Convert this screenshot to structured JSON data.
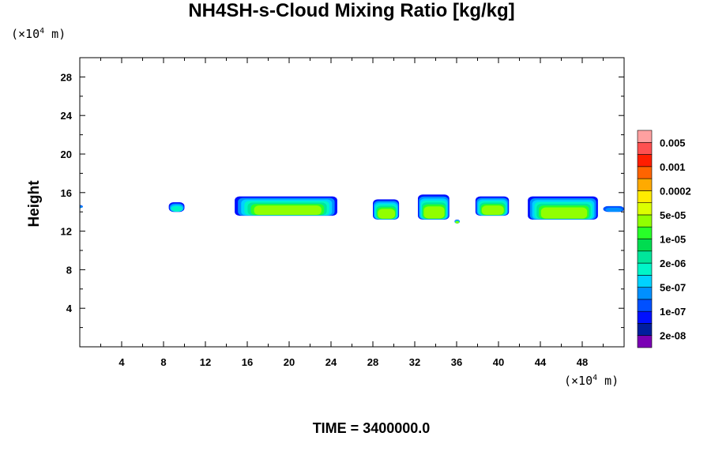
{
  "chart_data": {
    "type": "heatmap",
    "title": "NH4SH-s-Cloud Mixing Ratio [kg/kg]",
    "xlabel": "",
    "ylabel": "Height",
    "x_unit_label": {
      "prefix": "(×10",
      "exp": "4",
      "suffix": " m)"
    },
    "y_unit_label": {
      "prefix": "(×10",
      "exp": "4",
      "suffix": " m)"
    },
    "xlim": [
      0,
      52
    ],
    "ylim": [
      0,
      30
    ],
    "x_ticks": [
      "4",
      "8",
      "12",
      "16",
      "20",
      "24",
      "28",
      "32",
      "36",
      "40",
      "44",
      "48"
    ],
    "y_ticks": [
      "4",
      "8",
      "12",
      "16",
      "20",
      "24",
      "28"
    ],
    "colorbar": {
      "colors": [
        "#7a00b4",
        "#001e9e",
        "#0010ff",
        "#0050ff",
        "#0090ff",
        "#00d2ff",
        "#00f5c8",
        "#00e69b",
        "#00dc50",
        "#28ff28",
        "#91ff00",
        "#dcff00",
        "#ffeb00",
        "#ffaa00",
        "#ff6400",
        "#ff1e00",
        "#ff5050",
        "#ffa0a0"
      ],
      "labels": [
        "2e-08",
        "1e-07",
        "5e-07",
        "2e-06",
        "1e-05",
        "5e-05",
        "0.0002",
        "0.001",
        "0.005"
      ]
    },
    "cloud_features": [
      {
        "x": [
          -0.2,
          0.3
        ],
        "base": 14.4,
        "top": 14.7,
        "core": "blue"
      },
      {
        "x": [
          8.5,
          10.0
        ],
        "base": 14.0,
        "top": 15.0,
        "core": "cyan"
      },
      {
        "x": [
          14.8,
          24.6
        ],
        "base": 13.6,
        "top": 15.6,
        "core": "green"
      },
      {
        "x": [
          28.0,
          30.5
        ],
        "base": 13.2,
        "top": 15.3,
        "core": "green"
      },
      {
        "x": [
          32.3,
          35.3
        ],
        "base": 13.2,
        "top": 15.8,
        "core": "green"
      },
      {
        "x": [
          35.8,
          36.3
        ],
        "base": 12.8,
        "top": 13.2,
        "core": "green"
      },
      {
        "x": [
          37.8,
          41.0
        ],
        "base": 13.6,
        "top": 15.6,
        "core": "green"
      },
      {
        "x": [
          42.8,
          49.5
        ],
        "base": 13.2,
        "top": 15.6,
        "core": "green"
      },
      {
        "x": [
          50.0,
          52.0
        ],
        "base": 14.0,
        "top": 14.6,
        "core": "blue"
      }
    ]
  },
  "time_label": "TIME = 3400000.0"
}
